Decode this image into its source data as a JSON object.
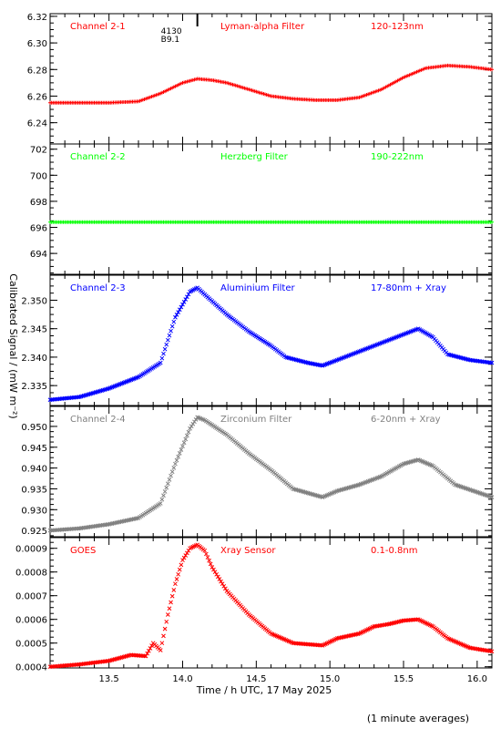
{
  "figure": {
    "xlabel": "Time / h UTC, 17 May 2025",
    "ylabel": "Calibrated Signal / (mW m⁻²)",
    "footnote": "(1 minute averages)",
    "x_tick_labels": [
      "13.5",
      "14.0",
      "14.5",
      "15.0",
      "15.5",
      "16.0"
    ],
    "event_marker": {
      "x": 14.1,
      "labels": [
        "4130",
        "B9.1"
      ]
    }
  },
  "chart_data": [
    {
      "type": "scatter",
      "channel": "Channel 2-1",
      "filter": "Lyman-alpha Filter",
      "band": "120-123nm",
      "color": "#ff0000",
      "marker": "plus",
      "xlim": [
        13.1,
        16.1
      ],
      "ylim": [
        6.224,
        6.322
      ],
      "yticks": [
        6.24,
        6.26,
        6.28,
        6.3,
        6.32
      ],
      "ytick_labels": [
        "6.24",
        "6.26",
        "6.28",
        "6.30",
        "6.32"
      ],
      "series": [
        {
          "x": [
            13.1,
            13.5,
            13.7,
            13.85,
            14.0,
            14.1,
            14.2,
            14.3,
            14.45,
            14.6,
            14.75,
            14.9,
            15.05,
            15.2,
            15.35,
            15.5,
            15.65,
            15.8,
            15.95,
            16.1
          ],
          "y": [
            6.255,
            6.255,
            6.256,
            6.262,
            6.27,
            6.273,
            6.272,
            6.27,
            6.265,
            6.26,
            6.258,
            6.257,
            6.257,
            6.259,
            6.265,
            6.274,
            6.281,
            6.283,
            6.282,
            6.28
          ]
        }
      ]
    },
    {
      "type": "scatter",
      "channel": "Channel 2-2",
      "filter": "Herzberg Filter",
      "band": "190-222nm",
      "color": "#00ff00",
      "marker": "plus",
      "xlim": [
        13.1,
        16.1
      ],
      "ylim": [
        692.4,
        702.4
      ],
      "yticks": [
        694,
        696,
        698,
        700,
        702
      ],
      "ytick_labels": [
        "694",
        "696",
        "698",
        "700",
        "702"
      ],
      "series": [
        {
          "x": [
            13.1,
            13.5,
            14.0,
            14.5,
            15.0,
            15.5,
            16.1
          ],
          "y": [
            696.4,
            696.4,
            696.4,
            696.4,
            696.4,
            696.4,
            696.4
          ]
        }
      ]
    },
    {
      "type": "scatter",
      "channel": "Channel 2-3",
      "filter": "Aluminium Filter",
      "band": "17-80nm + Xray",
      "color": "#0000ff",
      "marker": "x",
      "xlim": [
        13.1,
        16.1
      ],
      "ylim": [
        2.3315,
        2.3544
      ],
      "yticks": [
        2.335,
        2.34,
        2.345,
        2.35
      ],
      "ytick_labels": [
        "2.335",
        "2.340",
        "2.345",
        "2.350"
      ],
      "series": [
        {
          "x": [
            13.1,
            13.3,
            13.5,
            13.7,
            13.85,
            13.95,
            14.05,
            14.1,
            14.15,
            14.3,
            14.45,
            14.6,
            14.7,
            14.85,
            14.95,
            15.05,
            15.2,
            15.35,
            15.5,
            15.6,
            15.7,
            15.8,
            15.95,
            16.1
          ],
          "y": [
            2.3325,
            2.333,
            2.3345,
            2.3365,
            2.339,
            2.347,
            2.3515,
            2.3522,
            2.351,
            2.3475,
            2.3445,
            2.342,
            2.34,
            2.339,
            2.3385,
            2.3395,
            2.341,
            2.3425,
            2.344,
            2.345,
            2.3435,
            2.3405,
            2.3395,
            2.339
          ]
        }
      ]
    },
    {
      "type": "scatter",
      "channel": "Channel 2-4",
      "filter": "Zirconium Filter",
      "band": "6-20nm + Xray",
      "color": "#808080",
      "marker": "x",
      "xlim": [
        13.1,
        16.1
      ],
      "ylim": [
        0.9235,
        0.9548
      ],
      "yticks": [
        0.925,
        0.93,
        0.935,
        0.94,
        0.945,
        0.95
      ],
      "ytick_labels": [
        "0.925",
        "0.930",
        "0.935",
        "0.940",
        "0.945",
        "0.950"
      ],
      "series": [
        {
          "x": [
            13.1,
            13.3,
            13.5,
            13.7,
            13.85,
            13.95,
            14.05,
            14.1,
            14.15,
            14.3,
            14.45,
            14.6,
            14.75,
            14.95,
            15.05,
            15.2,
            15.35,
            15.5,
            15.6,
            15.7,
            15.85,
            16.1
          ],
          "y": [
            0.925,
            0.9255,
            0.9265,
            0.928,
            0.9315,
            0.941,
            0.9495,
            0.9522,
            0.9515,
            0.948,
            0.9435,
            0.9395,
            0.935,
            0.933,
            0.9345,
            0.936,
            0.938,
            0.941,
            0.942,
            0.9405,
            0.936,
            0.933
          ]
        }
      ]
    },
    {
      "type": "scatter",
      "channel": "GOES",
      "filter": "Xray Sensor",
      "band": "0.1-0.8nm",
      "color": "#ff0000",
      "marker": "x",
      "xlim": [
        13.1,
        16.1
      ],
      "ylim": [
        0.000395,
        0.000945
      ],
      "yticks": [
        0.0004,
        0.0005,
        0.0006,
        0.0007,
        0.0008,
        0.0009
      ],
      "ytick_labels": [
        "0.0004",
        "0.0005",
        "0.0006",
        "0.0007",
        "0.0008",
        "0.0009"
      ],
      "series": [
        {
          "x": [
            13.1,
            13.3,
            13.5,
            13.65,
            13.75,
            13.8,
            13.85,
            13.9,
            13.95,
            14.0,
            14.05,
            14.1,
            14.15,
            14.2,
            14.3,
            14.45,
            14.6,
            14.75,
            14.95,
            15.05,
            15.2,
            15.3,
            15.4,
            15.5,
            15.6,
            15.7,
            15.8,
            15.95,
            16.1
          ],
          "y": [
            0.0004,
            0.00041,
            0.000425,
            0.00045,
            0.000445,
            0.0005,
            0.00047,
            0.00062,
            0.00075,
            0.00085,
            0.0009,
            0.000915,
            0.00089,
            0.00082,
            0.00072,
            0.00062,
            0.00054,
            0.0005,
            0.00049,
            0.00052,
            0.00054,
            0.00057,
            0.00058,
            0.000595,
            0.0006,
            0.00057,
            0.00052,
            0.00048,
            0.000465
          ]
        }
      ]
    }
  ]
}
